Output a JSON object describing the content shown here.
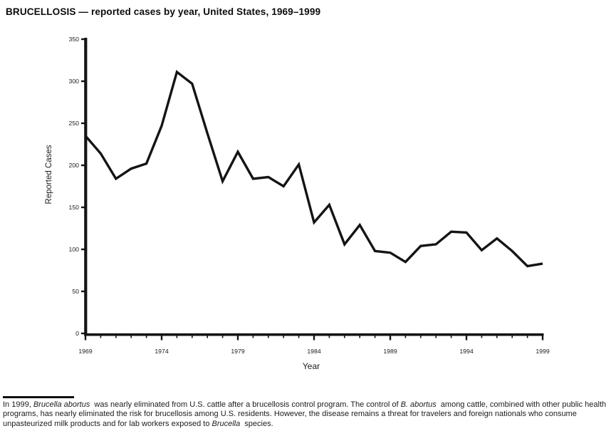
{
  "title": "BRUCELLOSIS — reported cases by year, United States, 1969–1999",
  "chart_data": {
    "type": "line",
    "title": "BRUCELLOSIS — reported cases by year, United States, 1969–1999",
    "xlabel": "Year",
    "ylabel": "Reported Cases",
    "x": [
      1969,
      1970,
      1971,
      1972,
      1973,
      1974,
      1975,
      1976,
      1977,
      1978,
      1979,
      1980,
      1981,
      1982,
      1983,
      1984,
      1985,
      1986,
      1987,
      1988,
      1989,
      1990,
      1991,
      1992,
      1993,
      1994,
      1995,
      1996,
      1997,
      1998,
      1999
    ],
    "values": [
      235,
      214,
      184,
      196,
      202,
      247,
      311,
      297,
      238,
      181,
      216,
      184,
      186,
      175,
      201,
      132,
      153,
      106,
      129,
      98,
      96,
      85,
      104,
      106,
      121,
      120,
      99,
      113,
      98,
      80,
      83
    ],
    "ylim": [
      0,
      350
    ],
    "y_tick_step": 50,
    "y_tick_labels": [
      "0",
      "50",
      "100",
      "150",
      "200",
      "250",
      "300",
      "350"
    ],
    "x_major_tick_step": 5,
    "x_tick_labels": [
      "1969",
      "1974",
      "1979",
      "1984",
      "1989",
      "1994",
      "1999"
    ],
    "grid": false,
    "legend": "none",
    "line_color": "#141414",
    "axis_color": "#141414"
  },
  "footnote": {
    "runs": [
      {
        "text": "In 1999, ",
        "italic": false
      },
      {
        "text": "Brucella abortus",
        "italic": true
      },
      {
        "text": " was nearly eliminated from U.S. cattle after a brucellosis control program. The control of ",
        "italic": false
      },
      {
        "text": "B. abortus",
        "italic": true
      },
      {
        "text": " among cattle, combined with other public health programs, has nearly eliminated the risk for brucellosis among U.S. residents. However, the disease remains a threat for travelers and foreign nationals who consume unpasteurized milk products and for lab workers exposed to ",
        "italic": false
      },
      {
        "text": "Brucella",
        "italic": true
      },
      {
        "text": " species.",
        "italic": false
      }
    ]
  }
}
